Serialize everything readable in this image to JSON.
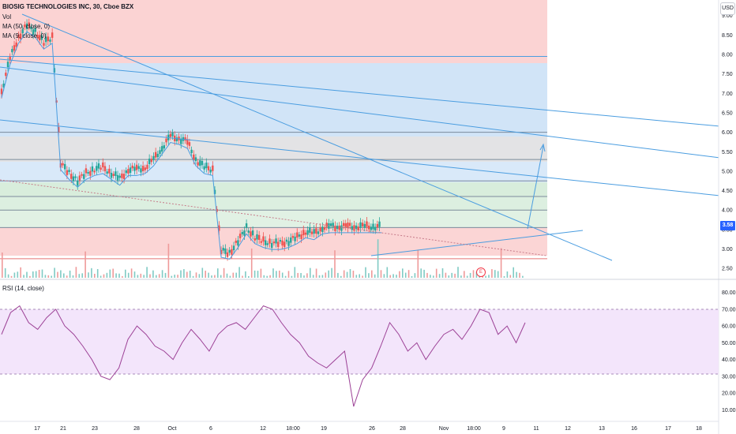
{
  "legend": {
    "symbol": "BIOSIG TECHNOLOGIES INC, 30, Cboe BZX",
    "vol": "Vol",
    "ma50": "MA (50, close, 0)",
    "ma9": "MA (9, close, 0)"
  },
  "rsi_label": "RSI (14, close)",
  "currency": "USD",
  "last_price": "3.58",
  "earnings_marker": "E",
  "colors": {
    "up": "#26a69a",
    "down": "#ef5350",
    "trendline": "#4a9de0",
    "rsi_line": "#9c4196",
    "rsi_band": "#f3e5fb"
  },
  "chart_data": [
    {
      "type": "line",
      "title": "BIOSIG TECHNOLOGIES INC, 30, Cboe BZX",
      "y_axis_ticks": [
        "9.00",
        "8.50",
        "8.00",
        "7.50",
        "7.00",
        "6.50",
        "6.00",
        "5.50",
        "5.00",
        "4.50",
        "4.00",
        "3.50",
        "3.00",
        "2.50"
      ],
      "x_axis_ticks": [
        "17",
        "21",
        "23",
        "28",
        "Oct",
        "6",
        "12",
        "18:00",
        "19",
        "26",
        "28",
        "Nov",
        "18:00",
        "9",
        "11",
        "12",
        "13",
        "16",
        "17",
        "18"
      ],
      "ylim": [
        2.3,
        9.4
      ],
      "price_series": {
        "x": [
          0,
          3,
          6,
          9,
          12,
          15,
          18,
          21,
          24,
          27,
          30,
          33,
          36,
          39,
          42,
          45,
          48,
          51,
          54,
          57,
          60,
          63,
          66,
          69,
          72,
          75,
          78,
          81,
          84,
          87,
          90,
          93,
          96,
          99,
          102,
          105,
          108,
          111,
          114,
          117,
          120,
          123,
          126,
          129,
          132,
          135,
          138,
          141,
          144,
          147,
          150,
          153,
          156,
          159,
          162,
          165,
          168,
          171,
          174,
          177,
          180,
          183,
          186
        ],
        "y": [
          7.05,
          7.9,
          8.45,
          8.75,
          8.6,
          8.3,
          8.45,
          5.2,
          4.95,
          4.75,
          4.95,
          5.05,
          5.1,
          4.95,
          4.8,
          5.05,
          5.05,
          5.1,
          5.3,
          5.6,
          5.9,
          5.85,
          5.75,
          5.3,
          5.1,
          5.05,
          2.95,
          2.9,
          3.2,
          3.55,
          3.3,
          3.2,
          3.15,
          3.15,
          3.2,
          3.3,
          3.45,
          3.4,
          3.55,
          3.58,
          3.58,
          3.58,
          3.58,
          3.58,
          3.58,
          3.58,
          3.58,
          3.58,
          3.58,
          3.58,
          3.58,
          3.58,
          3.58,
          3.58,
          3.58,
          3.58,
          3.58,
          3.58,
          3.58,
          3.58,
          3.58,
          3.58,
          3.58
        ]
      },
      "horizontal_levels": [
        7.95,
        6.0,
        5.3,
        4.75,
        4.35,
        4.0,
        3.55,
        2.75
      ]
    },
    {
      "type": "line",
      "title": "RSI (14, close)",
      "y_axis_ticks": [
        "80.00",
        "70.00",
        "60.00",
        "50.00",
        "40.00",
        "30.00",
        "20.00",
        "10.00"
      ],
      "band": [
        30,
        70
      ],
      "ylim": [
        5,
        85
      ],
      "values": [
        55,
        68,
        72,
        62,
        58,
        65,
        70,
        60,
        55,
        48,
        40,
        30,
        28,
        35,
        52,
        60,
        55,
        48,
        45,
        40,
        50,
        58,
        52,
        45,
        55,
        60,
        62,
        58,
        65,
        72,
        70,
        62,
        55,
        50,
        42,
        38,
        35,
        40,
        45,
        12,
        28,
        35,
        48,
        62,
        55,
        45,
        50,
        40,
        48,
        55,
        58,
        52,
        60,
        70,
        68,
        55,
        60,
        50,
        62
      ]
    }
  ]
}
